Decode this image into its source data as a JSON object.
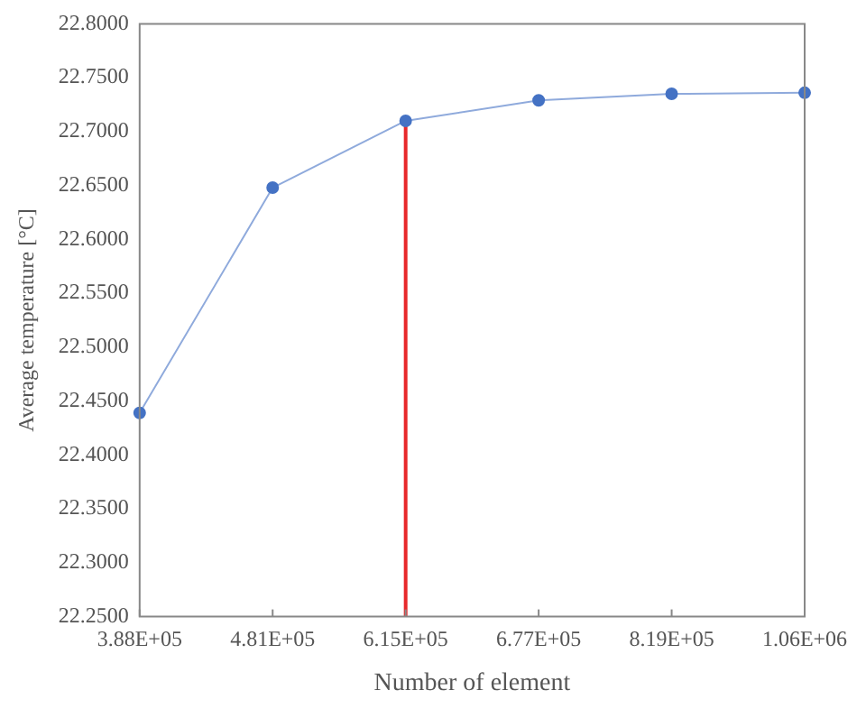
{
  "chart_data": {
    "type": "line",
    "xlabel": "Number of element",
    "ylabel": "Average temperature [°C]",
    "categories": [
      "3.88E+05",
      "4.81E+05",
      "6.15E+05",
      "6.77E+05",
      "8.19E+05",
      "1.06E+06"
    ],
    "series": [
      {
        "color": "#8faadc",
        "marker": "circle",
        "values": [
          22.439,
          22.648,
          22.71,
          22.729,
          22.735,
          22.736
        ]
      },
      {
        "color": "#e8282b",
        "marker": "none",
        "x": [
          "6.15E+05",
          "6.15E+05"
        ],
        "values": [
          22.25,
          22.71
        ]
      }
    ],
    "ylim": [
      22.25,
      22.8
    ],
    "yticks": [
      {
        "value": 22.25,
        "label": "22.2500"
      },
      {
        "value": 22.3,
        "label": "22.3000"
      },
      {
        "value": 22.35,
        "label": "22.3500"
      },
      {
        "value": 22.4,
        "label": "22.4000"
      },
      {
        "value": 22.45,
        "label": "22.4500"
      },
      {
        "value": 22.5,
        "label": "22.5000"
      },
      {
        "value": 22.55,
        "label": "22.5500"
      },
      {
        "value": 22.6,
        "label": "22.6000"
      },
      {
        "value": 22.65,
        "label": "22.6500"
      },
      {
        "value": 22.7,
        "label": "22.7000"
      },
      {
        "value": 22.75,
        "label": "22.7500"
      },
      {
        "value": 22.8,
        "label": "22.8000"
      }
    ],
    "grid": false,
    "legend": false
  }
}
